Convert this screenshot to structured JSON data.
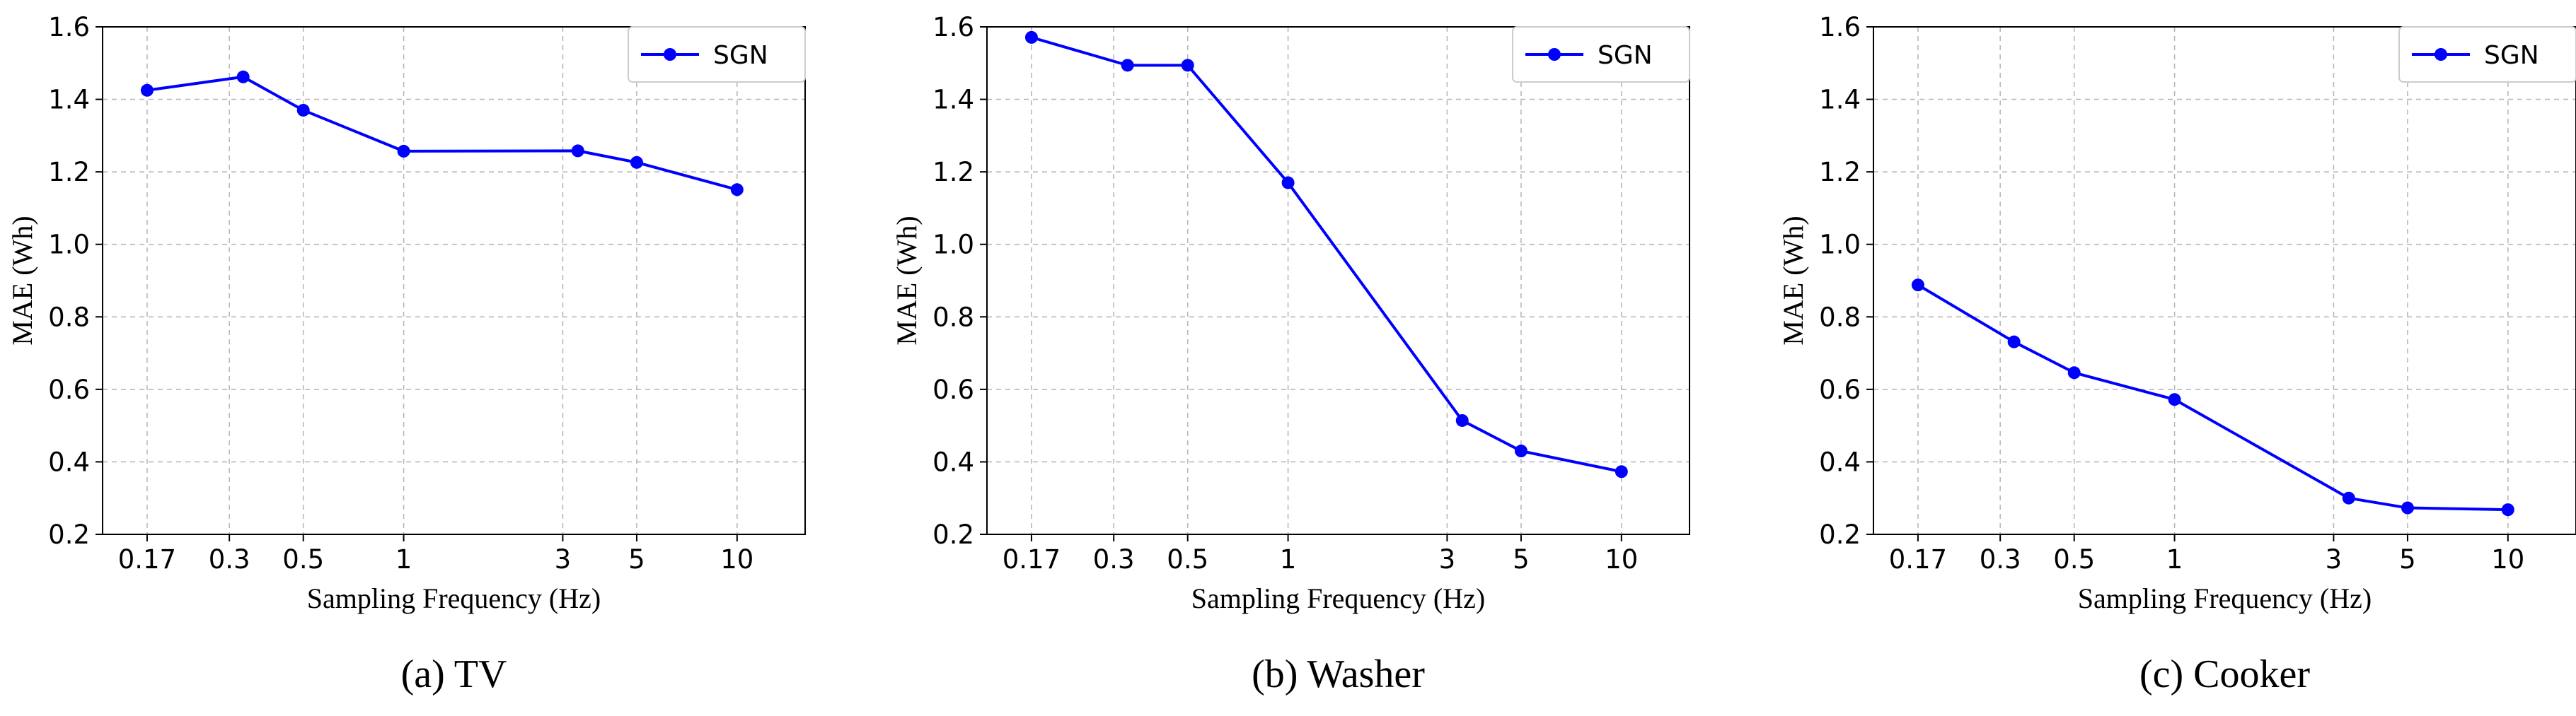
{
  "colors": {
    "series": "#0000ff"
  },
  "chart_data": [
    {
      "type": "line",
      "caption": "(a) TV",
      "xlabel": "Sampling Frequency (Hz)",
      "ylabel": "MAE (Wh)",
      "xscale": "log",
      "xlim": [
        0.125,
        16
      ],
      "ylim": [
        0.2,
        1.6
      ],
      "xticks": [
        0.17,
        0.3,
        0.5,
        1,
        3,
        5,
        10
      ],
      "xtick_labels": [
        "0.17",
        "0.3",
        "0.5",
        "1",
        "3",
        "5",
        "10"
      ],
      "yticks": [
        0.2,
        0.4,
        0.6,
        0.8,
        1.0,
        1.2,
        1.4,
        1.6
      ],
      "ytick_labels": [
        "0.2",
        "0.4",
        "0.6",
        "0.8",
        "1.0",
        "1.2",
        "1.4",
        "1.6"
      ],
      "grid": true,
      "legend_position": "top-right",
      "series": [
        {
          "name": "SGN",
          "x": [
            0.17,
            0.33,
            0.5,
            1,
            3.33,
            5,
            10
          ],
          "values": [
            1.425,
            1.462,
            1.37,
            1.257,
            1.258,
            1.226,
            1.151
          ]
        }
      ]
    },
    {
      "type": "line",
      "caption": "(b) Washer",
      "xlabel": "Sampling Frequency (Hz)",
      "ylabel": "MAE (Wh)",
      "xscale": "log",
      "xlim": [
        0.125,
        16
      ],
      "ylim": [
        0.2,
        1.6
      ],
      "xticks": [
        0.17,
        0.3,
        0.5,
        1,
        3,
        5,
        10
      ],
      "xtick_labels": [
        "0.17",
        "0.3",
        "0.5",
        "1",
        "3",
        "5",
        "10"
      ],
      "yticks": [
        0.2,
        0.4,
        0.6,
        0.8,
        1.0,
        1.2,
        1.4,
        1.6
      ],
      "ytick_labels": [
        "0.2",
        "0.4",
        "0.6",
        "0.8",
        "1.0",
        "1.2",
        "1.4",
        "1.6"
      ],
      "grid": true,
      "legend_position": "top-right",
      "series": [
        {
          "name": "SGN",
          "x": [
            0.17,
            0.33,
            0.5,
            1,
            3.33,
            5,
            10
          ],
          "values": [
            1.571,
            1.494,
            1.494,
            1.17,
            0.514,
            0.43,
            0.373
          ]
        }
      ]
    },
    {
      "type": "line",
      "caption": "(c) Cooker",
      "xlabel": "Sampling Frequency (Hz)",
      "ylabel": "MAE (Wh)",
      "xscale": "log",
      "xlim": [
        0.125,
        16
      ],
      "ylim": [
        0.2,
        1.6
      ],
      "xticks": [
        0.17,
        0.3,
        0.5,
        1,
        3,
        5,
        10
      ],
      "xtick_labels": [
        "0.17",
        "0.3",
        "0.5",
        "1",
        "3",
        "5",
        "10"
      ],
      "yticks": [
        0.2,
        0.4,
        0.6,
        0.8,
        1.0,
        1.2,
        1.4,
        1.6
      ],
      "ytick_labels": [
        "0.2",
        "0.4",
        "0.6",
        "0.8",
        "1.0",
        "1.2",
        "1.4",
        "1.6"
      ],
      "grid": true,
      "legend_position": "top-right",
      "series": [
        {
          "name": "SGN",
          "x": [
            0.17,
            0.33,
            0.5,
            1,
            3.33,
            5,
            10
          ],
          "values": [
            0.888,
            0.731,
            0.646,
            0.572,
            0.3,
            0.273,
            0.268
          ]
        }
      ]
    }
  ]
}
